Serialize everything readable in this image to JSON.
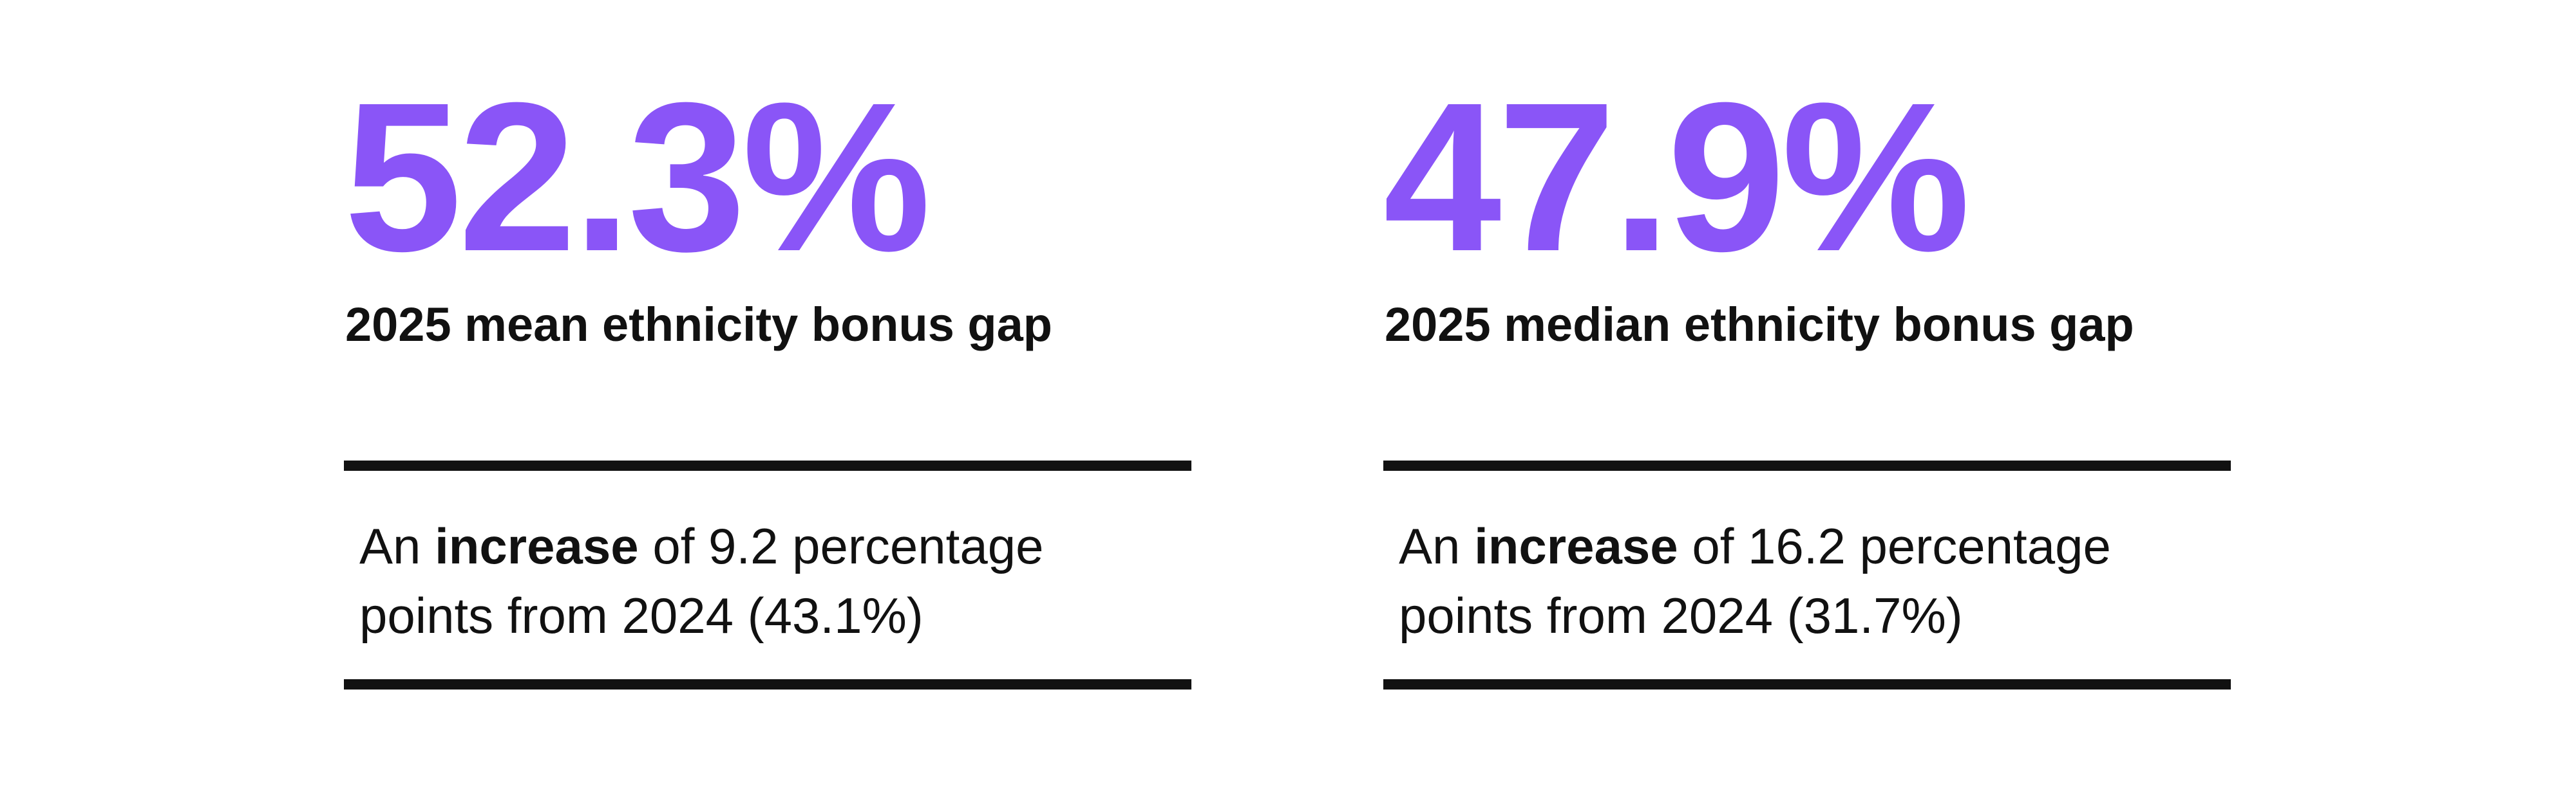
{
  "cards": [
    {
      "stat": "52.3%",
      "label": "2025 mean ethnicity bonus gap",
      "description": {
        "prefix": "An",
        "emphasis": "increase",
        "rest": "of 9.2 percentage points from 2024 (43.1%)"
      }
    },
    {
      "stat": "47.9%",
      "label": "2025 median ethnicity bonus gap",
      "description": {
        "prefix": "An",
        "emphasis": "increase",
        "rest": "of 16.2 percentage points from 2024 (31.7%)"
      }
    }
  ]
}
